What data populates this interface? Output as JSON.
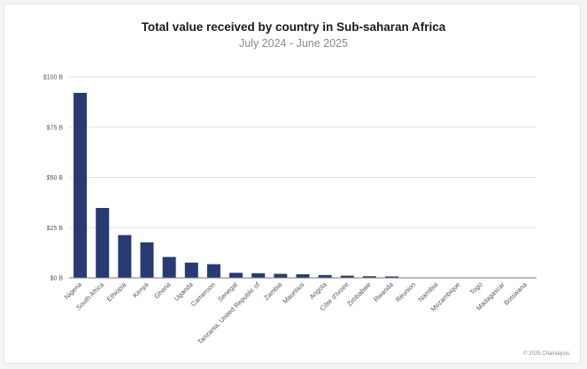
{
  "title": "Total value received by country in Sub-saharan Africa",
  "subtitle": "July 2024 - June 2025",
  "footer": "© 2025 Chainalysis",
  "colors": {
    "bar": "#283a72",
    "grid": "#e4e4e4",
    "axis": "#7a7a7a"
  },
  "chart_data": {
    "type": "bar",
    "title": "Total value received by country in Sub-saharan Africa",
    "subtitle": "July 2024 - June 2025",
    "categories": [
      "Nigeria",
      "South Africa",
      "Ethiopia",
      "Kenya",
      "Ghana",
      "Uganda",
      "Cameroon",
      "Senegal",
      "Tanzania, United Republic of",
      "Zambia",
      "Mauritius",
      "Angola",
      "Côte d'Ivoire",
      "Zimbabwe",
      "Rwanda",
      "Réunion",
      "Namibia",
      "Mozambique",
      "Togo",
      "Madagascar",
      "Botswana"
    ],
    "values": [
      92.1,
      34.8,
      21.3,
      17.7,
      10.4,
      7.6,
      6.8,
      2.5,
      2.3,
      2.0,
      1.8,
      1.4,
      1.1,
      0.8,
      0.7,
      0.1,
      0.1,
      0.1,
      0.05,
      0.05,
      0.05
    ],
    "unit": "B",
    "yticks": [
      "$0 B",
      "$25 B",
      "$50 B",
      "$75 B",
      "$100 B"
    ],
    "ytick_values": [
      0,
      25,
      50,
      75,
      100
    ],
    "ylim": [
      0,
      100
    ],
    "grid": true,
    "legend": "none"
  }
}
